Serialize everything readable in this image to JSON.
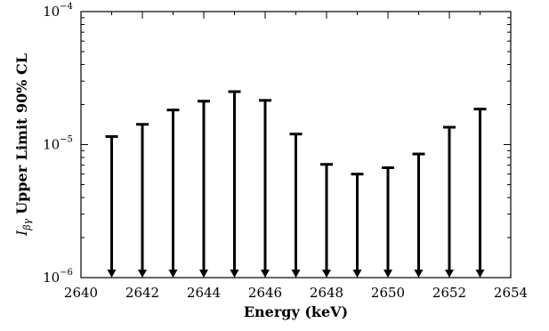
{
  "chart_data": {
    "type": "scatter",
    "subtype": "upper-limit-arrows",
    "xlabel": "Energy (keV)",
    "ylabel_main": "Upper Limit 90% CL",
    "ylabel_symbol": "I",
    "ylabel_subscript": "βγ",
    "xlim": [
      2640,
      2654
    ],
    "ylim": [
      1e-06,
      0.0001
    ],
    "yscale": "log",
    "grid": false,
    "x_ticks": [
      "2640",
      "2642",
      "2644",
      "2646",
      "2648",
      "2650",
      "2652",
      "2654"
    ],
    "y_ticks": [
      {
        "value": 1e-06,
        "base": "10",
        "exp": "−6"
      },
      {
        "value": 1e-05,
        "base": "10",
        "exp": "−5"
      },
      {
        "value": 0.0001,
        "base": "10",
        "exp": "−4"
      }
    ],
    "x": [
      2641,
      2642,
      2643,
      2644,
      2645,
      2646,
      2647,
      2648,
      2649,
      2650,
      2651,
      2652,
      2653
    ],
    "y": [
      1.15e-05,
      1.42e-05,
      1.82e-05,
      2.12e-05,
      2.5e-05,
      2.15e-05,
      1.2e-05,
      7.1e-06,
      6e-06,
      6.7e-06,
      8.5e-06,
      1.35e-05,
      1.85e-05
    ],
    "color": "#000000"
  }
}
